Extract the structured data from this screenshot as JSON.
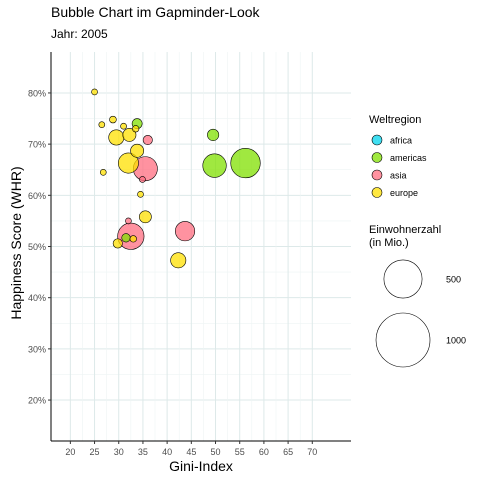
{
  "chart_data": {
    "type": "scatter",
    "title": "Bubble Chart im Gapminder-Look",
    "subtitle": "Jahr: 2005",
    "xlabel": "Gini-Index",
    "ylabel": "Happiness Score (WHR)",
    "xlim": [
      16,
      78
    ],
    "ylim": [
      12,
      88
    ],
    "x_ticks": [
      20,
      25,
      30,
      35,
      40,
      45,
      50,
      55,
      60,
      65,
      70
    ],
    "y_ticks": [
      20,
      30,
      40,
      50,
      60,
      70,
      80
    ],
    "y_tick_labels": [
      "20%",
      "30%",
      "40%",
      "50%",
      "60%",
      "70%",
      "80%"
    ],
    "grid": true,
    "legend_position": "right",
    "color_legend": {
      "title": "Weltregion",
      "entries": [
        {
          "name": "africa",
          "color": "#00d4ee"
        },
        {
          "name": "americas",
          "color": "#80e000"
        },
        {
          "name": "asia",
          "color": "#ff6e80"
        },
        {
          "name": "europe",
          "color": "#ffe000"
        }
      ]
    },
    "size_legend": {
      "title": "Einwohnerzahl\n(in Mio.)",
      "entries": [
        {
          "label": "500",
          "value": 500
        },
        {
          "label": "1000",
          "value": 1000
        }
      ]
    },
    "series": [
      {
        "name": "africa",
        "color": "#00d4ee",
        "points": []
      },
      {
        "name": "americas",
        "color": "#80e000",
        "points": [
          {
            "x": 33.8,
            "y": 74.0,
            "pop": 35
          },
          {
            "x": 49.5,
            "y": 71.8,
            "pop": 45
          },
          {
            "x": 49.8,
            "y": 65.8,
            "pop": 190
          },
          {
            "x": 56.2,
            "y": 66.3,
            "pop": 300
          },
          {
            "x": 31.5,
            "y": 51.7,
            "pop": 25
          }
        ]
      },
      {
        "name": "asia",
        "color": "#ff6e80",
        "points": [
          {
            "x": 35.5,
            "y": 65.2,
            "pop": 200
          },
          {
            "x": 36.0,
            "y": 70.8,
            "pop": 30
          },
          {
            "x": 43.7,
            "y": 53.0,
            "pop": 130
          },
          {
            "x": 32.5,
            "y": 52.0,
            "pop": 240
          },
          {
            "x": 32.0,
            "y": 55.0,
            "pop": 10
          },
          {
            "x": 34.9,
            "y": 63.1,
            "pop": 10
          }
        ]
      },
      {
        "name": "europe",
        "color": "#ffe000",
        "points": [
          {
            "x": 25.0,
            "y": 80.2,
            "pop": 8
          },
          {
            "x": 26.5,
            "y": 73.8,
            "pop": 10
          },
          {
            "x": 28.8,
            "y": 74.8,
            "pop": 16
          },
          {
            "x": 29.5,
            "y": 71.3,
            "pop": 80
          },
          {
            "x": 31.0,
            "y": 73.5,
            "pop": 10
          },
          {
            "x": 32.2,
            "y": 71.8,
            "pop": 60
          },
          {
            "x": 32.0,
            "y": 66.3,
            "pop": 140
          },
          {
            "x": 33.8,
            "y": 68.7,
            "pop": 60
          },
          {
            "x": 33.5,
            "y": 73.0,
            "pop": 15
          },
          {
            "x": 26.8,
            "y": 64.5,
            "pop": 8
          },
          {
            "x": 34.5,
            "y": 60.2,
            "pop": 10
          },
          {
            "x": 35.5,
            "y": 55.8,
            "pop": 50
          },
          {
            "x": 29.8,
            "y": 50.6,
            "pop": 30
          },
          {
            "x": 33.0,
            "y": 51.5,
            "pop": 15
          },
          {
            "x": 42.3,
            "y": 47.3,
            "pop": 80
          }
        ]
      }
    ]
  }
}
